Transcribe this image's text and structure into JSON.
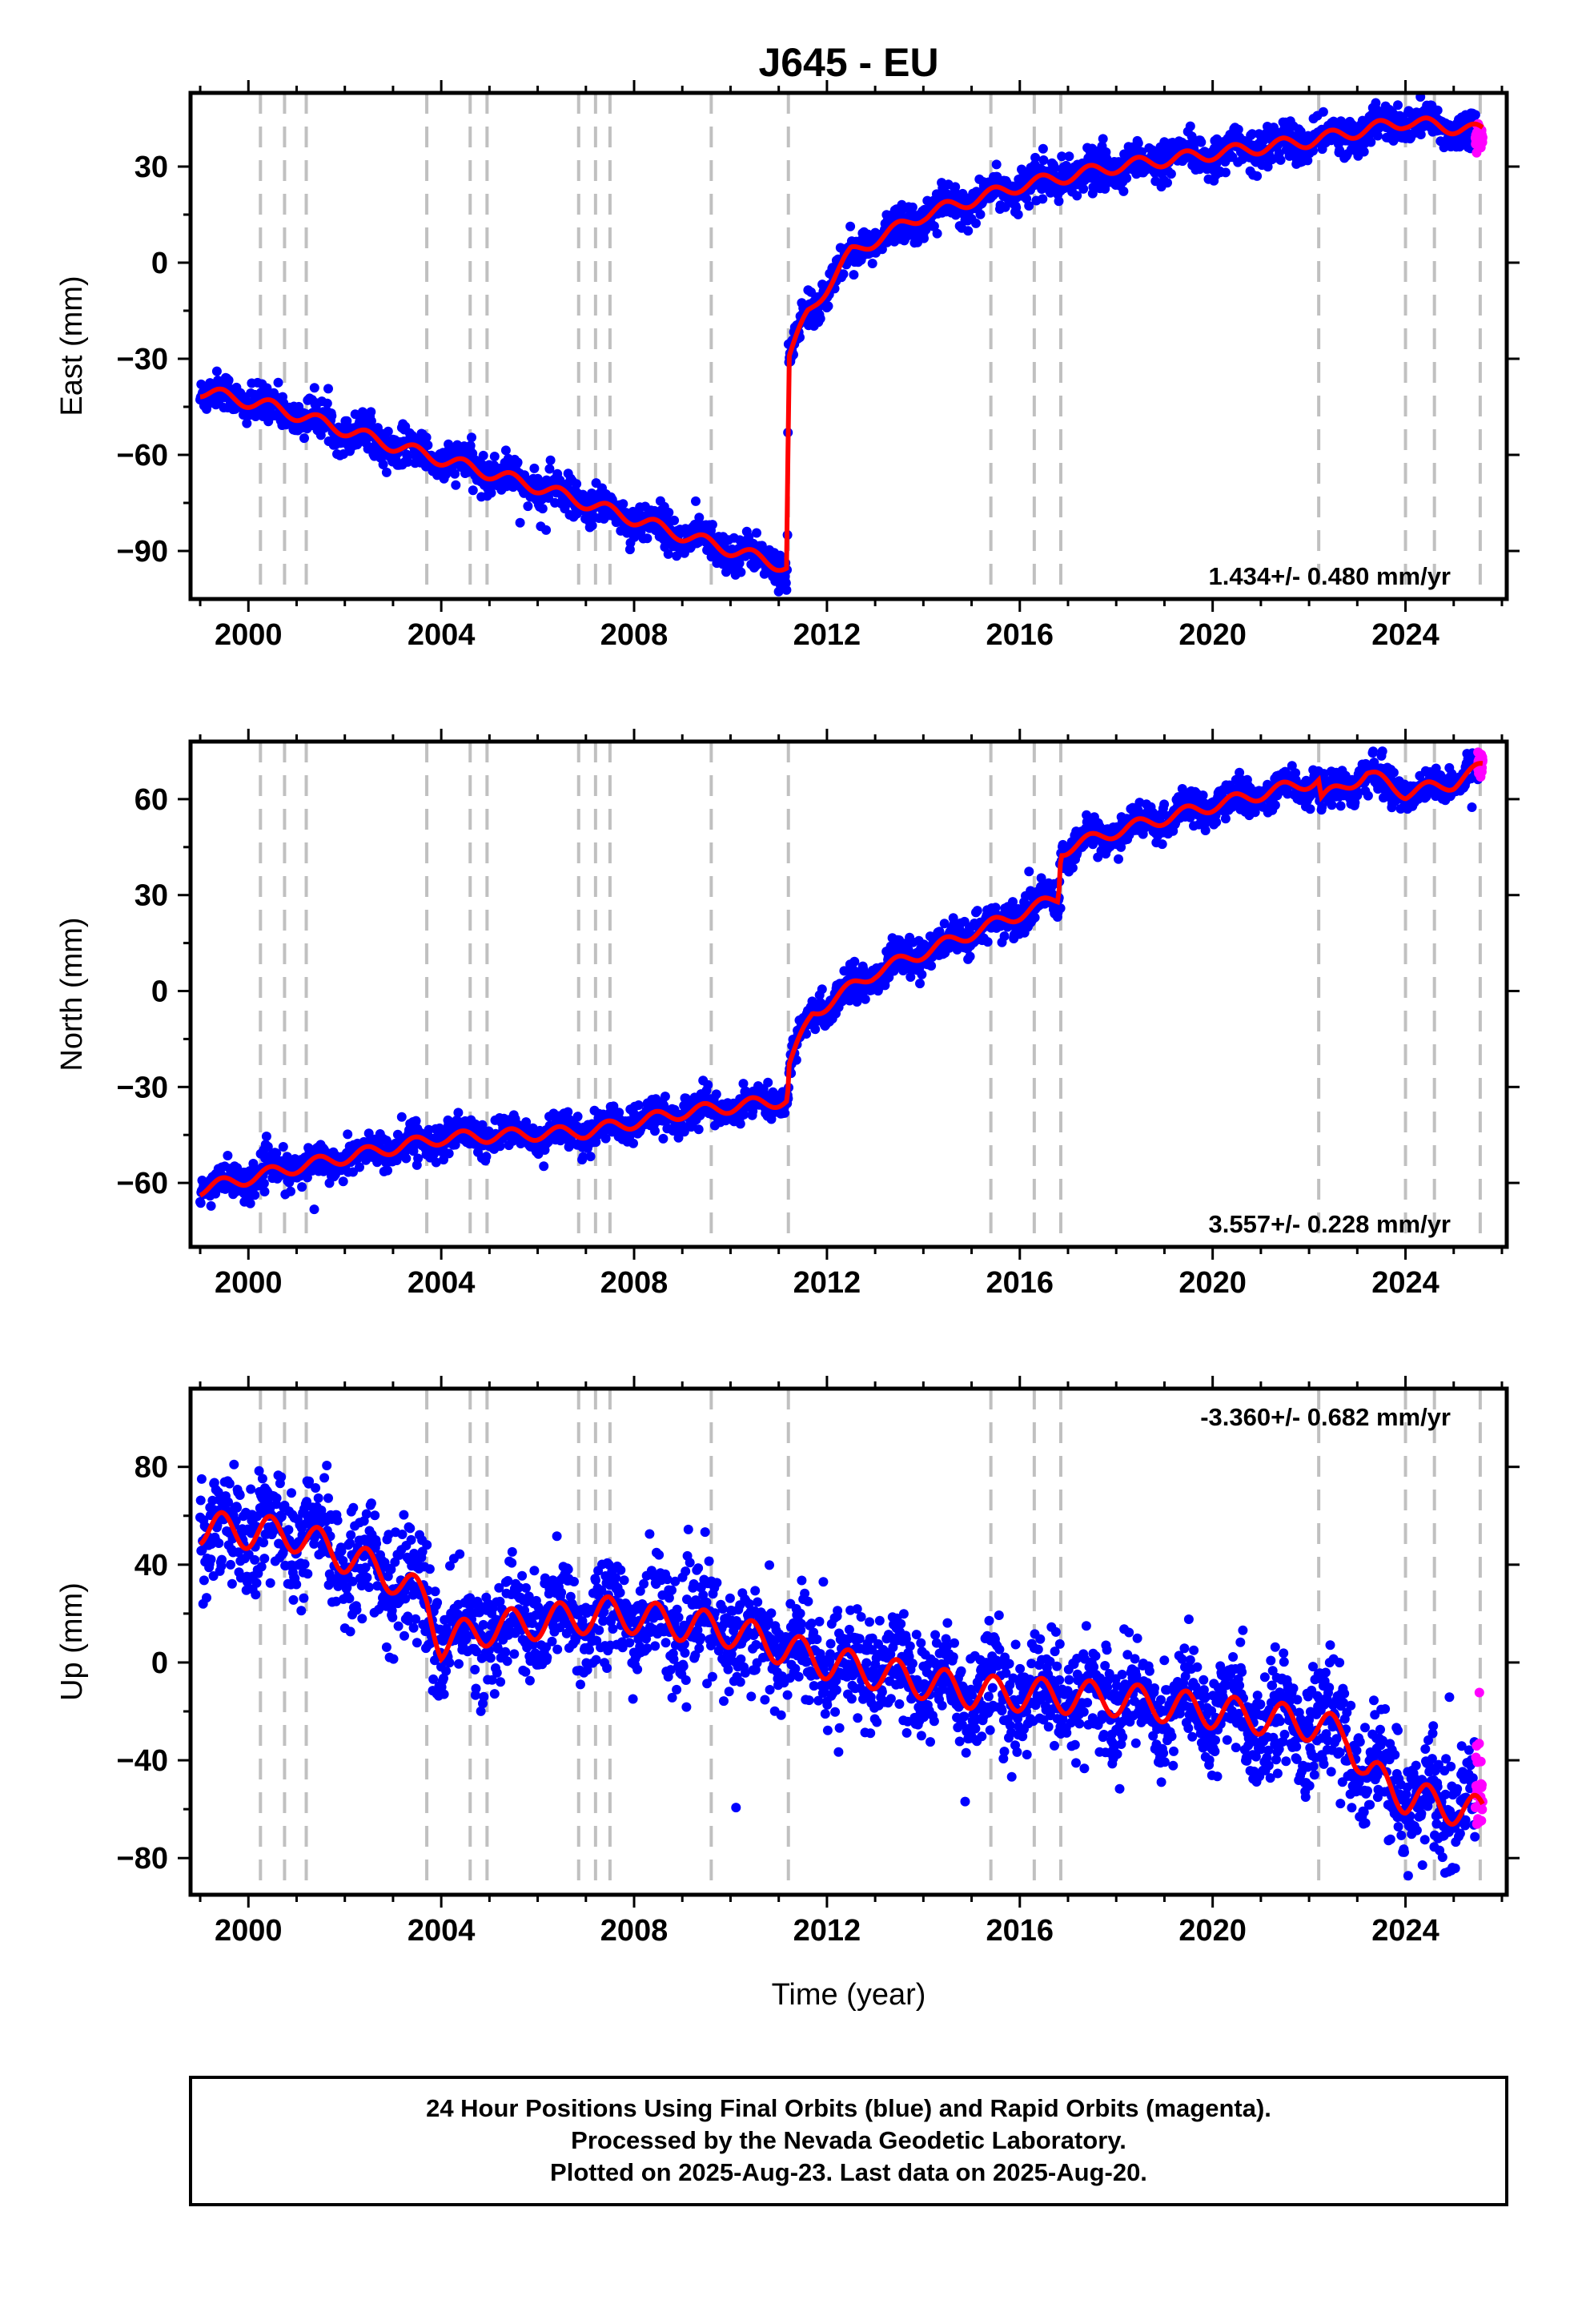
{
  "station": "J645 - EU",
  "colors": {
    "final_orbits": "#0000ff",
    "rapid_orbits": "#ff00ff",
    "model": "#ff0000",
    "event_lines": "#c0c0c0"
  },
  "chart_data": [
    {
      "type": "scatter",
      "ylabel": "East (mm)",
      "xlabel": "",
      "xlim": [
        1998.8,
        2026.1
      ],
      "ylim": [
        -105,
        53
      ],
      "xticks": [
        2000,
        2004,
        2008,
        2012,
        2016,
        2020,
        2024
      ],
      "yticks": [
        -90,
        -60,
        -30,
        0,
        30
      ],
      "event_lines": [
        2000.25,
        2000.75,
        2001.2,
        2003.7,
        2004.6,
        2004.95,
        2006.85,
        2007.2,
        2007.5,
        2009.6,
        2011.2,
        2015.4,
        2016.3,
        2016.85,
        2022.2,
        2024.0,
        2024.6,
        2025.55
      ],
      "rate": "1.434+/- 0.480 mm/yr",
      "rate_position": "bottom-right",
      "trend": {
        "x": [
          1999.0,
          2000.5,
          2003.0,
          2006.0,
          2009.0,
          2011.18,
          2011.2,
          2011.6,
          2012.5,
          2014.0,
          2016.0,
          2018.0,
          2020.0,
          2022.0,
          2024.0,
          2025.6
        ],
        "y": [
          -40,
          -45,
          -57,
          -70,
          -85,
          -95,
          -30,
          -16,
          3,
          15,
          24,
          30,
          34,
          38,
          44,
          41
        ]
      },
      "noise": 2.8,
      "seasonal_amp": 2.0,
      "rapid": {
        "x0": 2025.45,
        "x1": 2025.6,
        "y": 39
      }
    },
    {
      "type": "scatter",
      "ylabel": "North (mm)",
      "xlabel": "",
      "xlim": [
        1998.8,
        2026.1
      ],
      "ylim": [
        -80,
        78
      ],
      "xticks": [
        2000,
        2004,
        2008,
        2012,
        2016,
        2020,
        2024
      ],
      "yticks": [
        -60,
        -30,
        0,
        30,
        60
      ],
      "event_lines": [
        2000.25,
        2000.75,
        2001.2,
        2003.7,
        2004.6,
        2004.95,
        2006.85,
        2007.2,
        2007.5,
        2009.6,
        2011.2,
        2015.4,
        2016.3,
        2016.85,
        2022.2,
        2024.0,
        2024.6,
        2025.55
      ],
      "rate": "3.557+/- 0.228 mm/yr",
      "rate_position": "bottom-right",
      "trend": {
        "x": [
          1999.0,
          2001.0,
          2004.0,
          2007.0,
          2009.0,
          2011.18,
          2011.22,
          2011.7,
          2013.0,
          2016.8,
          2016.85,
          2018.0,
          2020.0,
          2022.2,
          2022.25,
          2023.2,
          2024.0,
          2025.0,
          2025.6
        ],
        "y": [
          -62,
          -55,
          -46,
          -44,
          -38,
          -34,
          -23,
          -7,
          6,
          29,
          44,
          50,
          58,
          66,
          60,
          68,
          62,
          65,
          70
        ]
      },
      "noise": 2.6,
      "seasonal_amp": 2.0,
      "rapid": {
        "x0": 2025.5,
        "x1": 2025.6,
        "y": 72
      }
    },
    {
      "type": "scatter",
      "ylabel": "Up (mm)",
      "xlabel": "Time (year)",
      "xlim": [
        1998.8,
        2026.1
      ],
      "ylim": [
        -95,
        112
      ],
      "xticks": [
        2000,
        2004,
        2008,
        2012,
        2016,
        2020,
        2024
      ],
      "yticks": [
        -80,
        -40,
        0,
        40,
        80
      ],
      "event_lines": [
        2000.25,
        2000.75,
        2001.2,
        2003.7,
        2004.6,
        2004.95,
        2006.85,
        2007.2,
        2007.5,
        2009.6,
        2011.2,
        2015.4,
        2016.3,
        2016.85,
        2022.2,
        2024.0,
        2024.6,
        2025.55
      ],
      "rate": "-3.360+/- 0.682 mm/yr",
      "rate_position": "top-right",
      "trend": {
        "x": [
          1999.0,
          2001.0,
          2003.0,
          2003.7,
          2004.0,
          2005.0,
          2007.5,
          2010.0,
          2012.0,
          2015.0,
          2018.0,
          2020.0,
          2022.0,
          2022.8,
          2023.2,
          2024.0,
          2025.6
        ],
        "y": [
          55,
          52,
          35,
          25,
          8,
          14,
          20,
          13,
          0,
          -12,
          -15,
          -20,
          -25,
          -30,
          -45,
          -55,
          -62
        ]
      },
      "noise": 11,
      "seasonal_amp": 7,
      "rapid": {
        "x0": 2025.45,
        "x1": 2025.6,
        "y": -50
      }
    }
  ],
  "footer": {
    "line1": "24 Hour Positions Using Final Orbits (blue) and Rapid Orbits (magenta).",
    "line2": "Processed by the Nevada Geodetic Laboratory.",
    "line3": "Plotted on 2025-Aug-23. Last data on 2025-Aug-20."
  }
}
